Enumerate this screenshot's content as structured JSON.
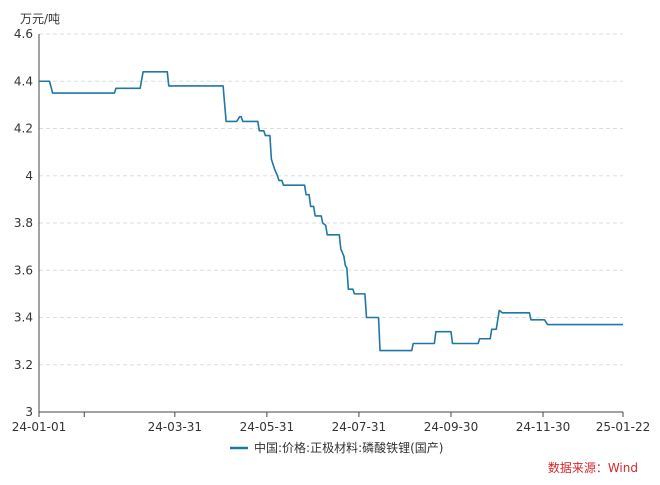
{
  "chart_data": {
    "type": "line",
    "title": "",
    "xlabel": "",
    "ylabel": "万元/吨",
    "ylim": [
      3,
      4.6
    ],
    "y_ticks": [
      "3",
      "3.2",
      "3.4",
      "3.6",
      "3.8",
      "4",
      "4.2",
      "4.4",
      "4.6"
    ],
    "x_ticks": [
      "24-01-01",
      "24-03-31",
      "24-05-31",
      "24-07-31",
      "24-09-30",
      "24-11-30",
      "25-01-22"
    ],
    "x_range": [
      "2024-01-01",
      "2025-01-22"
    ],
    "grid": true,
    "legend_position": "bottom",
    "series": [
      {
        "name": "中国:价格:正极材料:磷酸铁锂(国产)",
        "color": "#1f77a8",
        "points": [
          [
            "2024-01-01",
            4.4
          ],
          [
            "2024-01-08",
            4.4
          ],
          [
            "2024-01-10",
            4.35
          ],
          [
            "2024-02-20",
            4.35
          ],
          [
            "2024-02-21",
            4.37
          ],
          [
            "2024-03-08",
            4.37
          ],
          [
            "2024-03-10",
            4.44
          ],
          [
            "2024-03-26",
            4.44
          ],
          [
            "2024-03-27",
            4.38
          ],
          [
            "2024-05-02",
            4.38
          ],
          [
            "2024-05-04",
            4.23
          ],
          [
            "2024-05-11",
            4.23
          ],
          [
            "2024-05-13",
            4.25
          ],
          [
            "2024-05-14",
            4.25
          ],
          [
            "2024-05-15",
            4.23
          ],
          [
            "2024-05-25",
            4.23
          ],
          [
            "2024-05-26",
            4.19
          ],
          [
            "2024-05-29",
            4.19
          ],
          [
            "2024-05-30",
            4.17
          ],
          [
            "2024-06-02",
            4.17
          ],
          [
            "2024-06-03",
            4.07
          ],
          [
            "2024-06-05",
            4.03
          ],
          [
            "2024-06-07",
            4.0
          ],
          [
            "2024-06-08",
            3.98
          ],
          [
            "2024-06-10",
            3.98
          ],
          [
            "2024-06-11",
            3.96
          ],
          [
            "2024-06-25",
            3.96
          ],
          [
            "2024-06-26",
            3.92
          ],
          [
            "2024-06-28",
            3.92
          ],
          [
            "2024-06-29",
            3.87
          ],
          [
            "2024-07-01",
            3.87
          ],
          [
            "2024-07-02",
            3.83
          ],
          [
            "2024-07-06",
            3.83
          ],
          [
            "2024-07-07",
            3.8
          ],
          [
            "2024-07-09",
            3.79
          ],
          [
            "2024-07-10",
            3.75
          ],
          [
            "2024-07-18",
            3.75
          ],
          [
            "2024-07-19",
            3.69
          ],
          [
            "2024-07-21",
            3.66
          ],
          [
            "2024-07-22",
            3.62
          ],
          [
            "2024-07-23",
            3.61
          ],
          [
            "2024-07-24",
            3.52
          ],
          [
            "2024-07-27",
            3.52
          ],
          [
            "2024-07-28",
            3.5
          ],
          [
            "2024-08-04",
            3.5
          ],
          [
            "2024-08-05",
            3.4
          ],
          [
            "2024-08-13",
            3.4
          ],
          [
            "2024-08-14",
            3.26
          ],
          [
            "2024-09-04",
            3.26
          ],
          [
            "2024-09-05",
            3.29
          ],
          [
            "2024-09-19",
            3.29
          ],
          [
            "2024-09-20",
            3.34
          ],
          [
            "2024-09-30",
            3.34
          ],
          [
            "2024-10-01",
            3.29
          ],
          [
            "2024-10-18",
            3.29
          ],
          [
            "2024-10-19",
            3.31
          ],
          [
            "2024-10-26",
            3.31
          ],
          [
            "2024-10-27",
            3.35
          ],
          [
            "2024-10-30",
            3.35
          ],
          [
            "2024-10-31",
            3.39
          ],
          [
            "2024-11-01",
            3.43
          ],
          [
            "2024-11-03",
            3.42
          ],
          [
            "2024-11-21",
            3.42
          ],
          [
            "2024-11-22",
            3.39
          ],
          [
            "2024-12-01",
            3.39
          ],
          [
            "2024-12-03",
            3.37
          ],
          [
            "2025-01-22",
            3.37
          ]
        ]
      }
    ]
  },
  "source": {
    "text": "数据来源：Wind",
    "color": "#d62728"
  }
}
